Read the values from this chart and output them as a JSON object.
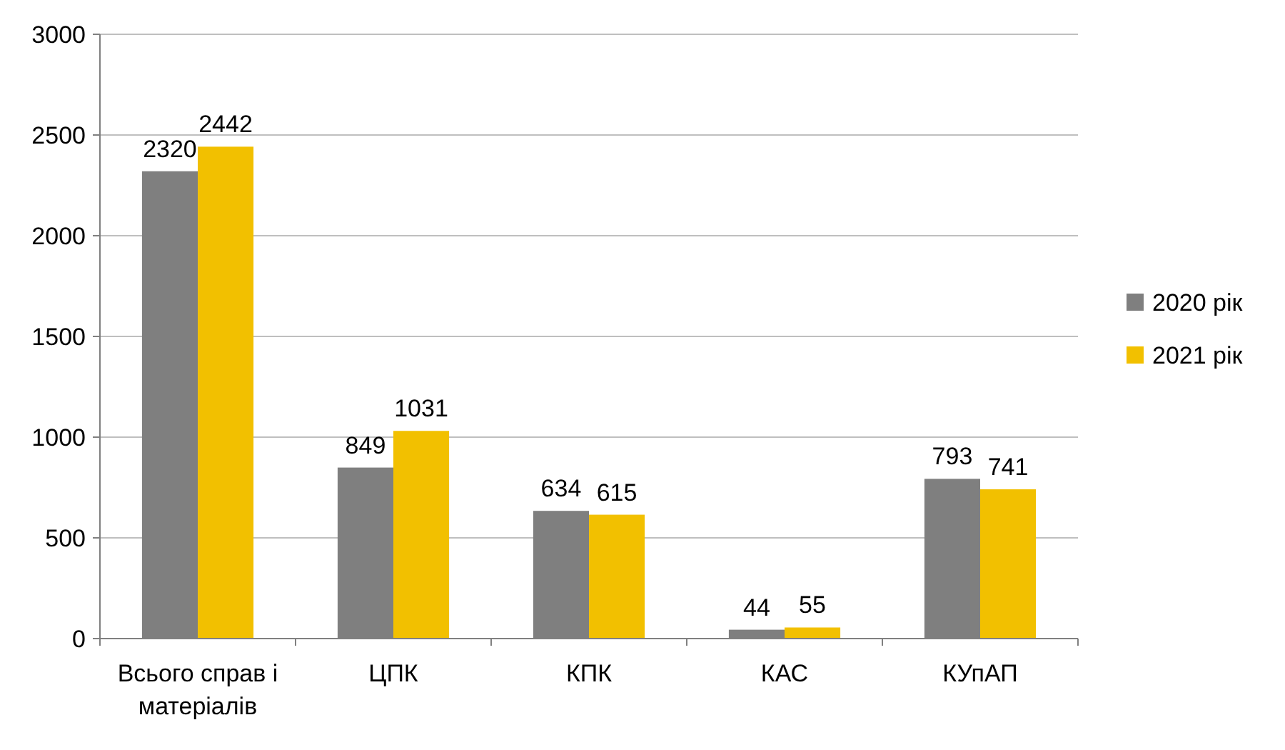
{
  "chart_data": {
    "type": "bar",
    "categories": [
      "Всього справ і матеріалів",
      "ЦПК",
      "КПК",
      "КАС",
      "КУпАП"
    ],
    "series": [
      {
        "name": "2020 рік",
        "color": "#7f7f7f",
        "values": [
          2320,
          849,
          634,
          44,
          793
        ]
      },
      {
        "name": "2021 рік",
        "color": "#f2c000",
        "values": [
          2442,
          1031,
          615,
          55,
          741
        ]
      }
    ],
    "ylim": [
      0,
      3000
    ],
    "yticks": [
      0,
      500,
      1000,
      1500,
      2000,
      2500,
      3000
    ],
    "grid": "y",
    "legend": "right",
    "data_labels": true
  }
}
